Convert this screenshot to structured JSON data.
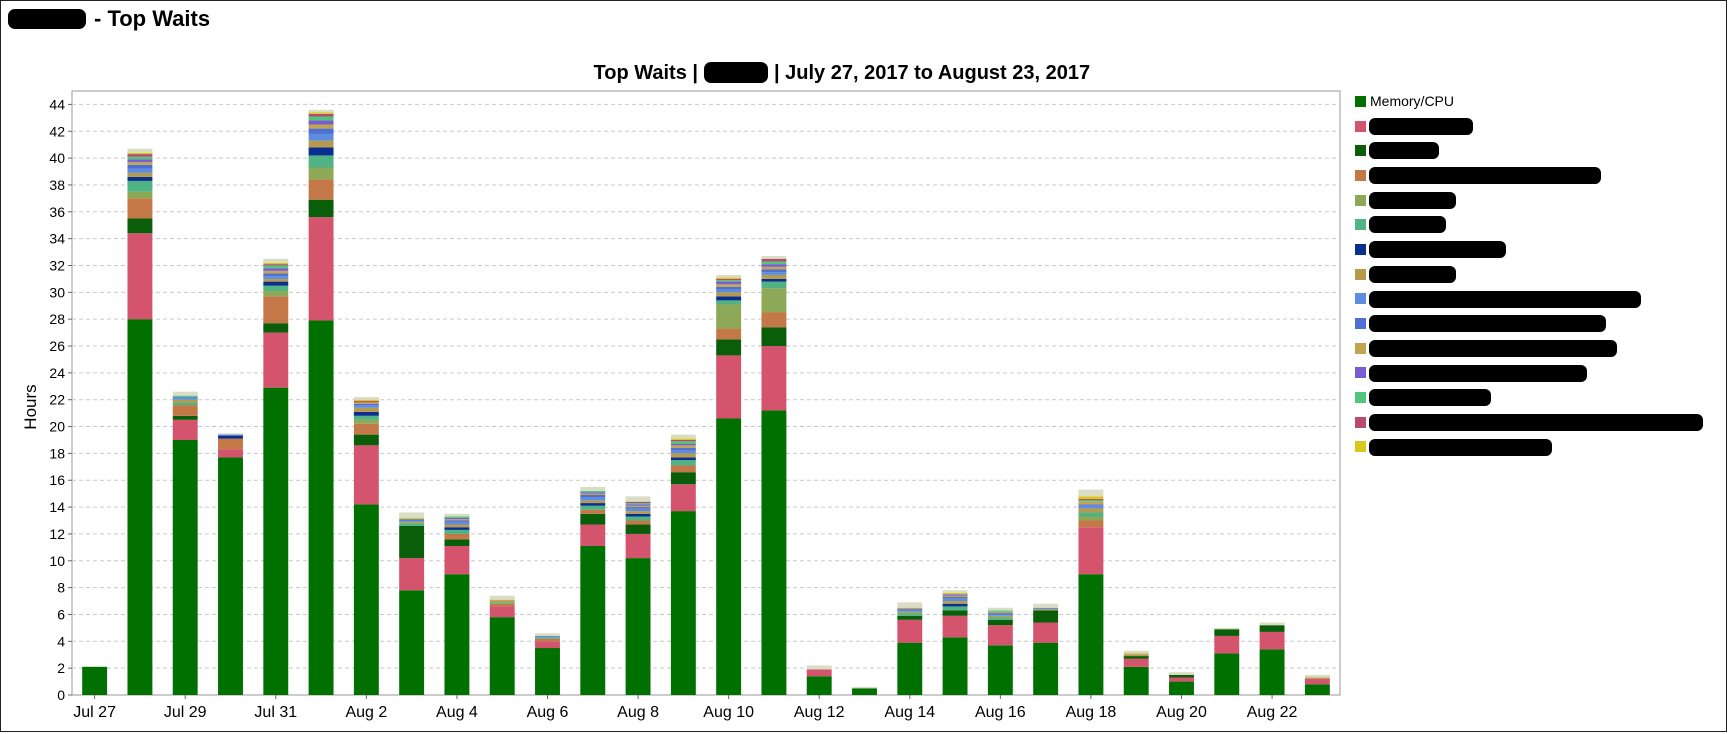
{
  "page": {
    "title": "- Top Waits"
  },
  "colors": {
    "background": "#ffffff",
    "plot_border": "#999999",
    "grid": "#c9c9c9",
    "redaction": "#000000"
  },
  "chart_data": {
    "type": "bar",
    "stacked": true,
    "title": "Top Waits |",
    "title_suffix": "| July 27, 2017 to August 23, 2017",
    "xlabel": "",
    "ylabel": "Hours",
    "ylim": [
      0,
      45
    ],
    "yticks": [
      0,
      2,
      4,
      6,
      8,
      10,
      12,
      14,
      16,
      18,
      20,
      22,
      24,
      26,
      28,
      30,
      32,
      34,
      36,
      38,
      40,
      42,
      44
    ],
    "grid": true,
    "legend_position": "right",
    "categories": [
      "Jul 27",
      "Jul 28",
      "Jul 29",
      "Jul 30",
      "Jul 31",
      "Aug 1",
      "Aug 2",
      "Aug 3",
      "Aug 4",
      "Aug 5",
      "Aug 6",
      "Aug 7",
      "Aug 8",
      "Aug 9",
      "Aug 10",
      "Aug 11",
      "Aug 12",
      "Aug 13",
      "Aug 14",
      "Aug 15",
      "Aug 16",
      "Aug 17",
      "Aug 18",
      "Aug 19",
      "Aug 20",
      "Aug 21",
      "Aug 22",
      "Aug 23"
    ],
    "xtick_labels": [
      "Jul 27",
      "",
      "Jul 29",
      "",
      "Jul 31",
      "",
      "Aug 2",
      "",
      "Aug 4",
      "",
      "Aug 6",
      "",
      "Aug 8",
      "",
      "Aug 10",
      "",
      "Aug 12",
      "",
      "Aug 14",
      "",
      "Aug 16",
      "",
      "Aug 18",
      "",
      "Aug 20",
      "",
      "Aug 22",
      ""
    ],
    "series": [
      {
        "name": "Memory/CPU",
        "color": "#007000",
        "values": [
          2.1,
          28.0,
          19.0,
          17.7,
          22.9,
          27.9,
          14.2,
          7.8,
          9.0,
          5.8,
          3.5,
          11.1,
          10.2,
          13.7,
          20.6,
          21.2,
          1.4,
          0.5,
          3.9,
          4.3,
          3.7,
          3.9,
          9.0,
          2.1,
          1.0,
          3.1,
          3.4,
          0.8
        ]
      },
      {
        "color": "#d4546e",
        "values": [
          0,
          6.4,
          1.5,
          0.6,
          4.1,
          7.7,
          4.4,
          2.4,
          2.1,
          0.8,
          0.5,
          1.6,
          1.8,
          2.0,
          4.7,
          4.8,
          0.5,
          0,
          1.7,
          1.6,
          1.5,
          1.5,
          3.5,
          0.6,
          0.3,
          1.3,
          1.3,
          0.4
        ]
      },
      {
        "color": "#0a5e0a",
        "values": [
          0,
          1.1,
          0.3,
          0,
          0.7,
          1.3,
          0.8,
          2.4,
          0.5,
          0,
          0,
          0.8,
          0.7,
          0.9,
          1.2,
          1.4,
          0,
          0,
          0.3,
          0.4,
          0.4,
          0.9,
          0,
          0.2,
          0.2,
          0.5,
          0.5,
          0
        ]
      },
      {
        "color": "#c47848",
        "values": [
          0,
          1.5,
          0.8,
          0.8,
          2.0,
          1.5,
          0.8,
          0,
          0.4,
          0.2,
          0.2,
          0.3,
          0.3,
          0.5,
          0.8,
          1.1,
          0,
          0,
          0,
          0,
          0,
          0,
          0.5,
          0,
          0,
          0,
          0,
          0
        ]
      },
      {
        "color": "#8da857",
        "values": [
          0,
          0.5,
          0,
          0,
          0.4,
          0.9,
          0.3,
          0,
          0,
          0,
          0,
          0,
          0,
          0,
          1.8,
          1.8,
          0,
          0,
          0,
          0,
          0,
          0,
          0.3,
          0,
          0,
          0,
          0,
          0
        ]
      },
      {
        "color": "#4fb384",
        "values": [
          0,
          0.8,
          0.2,
          0,
          0.4,
          0.9,
          0.3,
          0.2,
          0.3,
          0.1,
          0.1,
          0.3,
          0.3,
          0.4,
          0.3,
          0.5,
          0,
          0,
          0.2,
          0.3,
          0.2,
          0,
          0.3,
          0,
          0,
          0,
          0,
          0
        ]
      },
      {
        "color": "#0b2f8f",
        "values": [
          0,
          0.3,
          0,
          0.2,
          0.3,
          0.6,
          0.3,
          0,
          0.2,
          0,
          0,
          0.2,
          0.2,
          0.2,
          0.3,
          0.2,
          0,
          0,
          0,
          0.2,
          0,
          0,
          0,
          0,
          0,
          0,
          0,
          0
        ]
      },
      {
        "color": "#b89a4a",
        "values": [
          0,
          0.3,
          0.2,
          0,
          0.2,
          0.5,
          0.3,
          0.1,
          0.2,
          0.1,
          0,
          0.2,
          0.2,
          0.3,
          0.3,
          0.3,
          0,
          0,
          0.1,
          0.2,
          0.1,
          0.1,
          0.3,
          0.1,
          0,
          0,
          0,
          0.1
        ]
      },
      {
        "color": "#5b8de0",
        "values": [
          0,
          0.3,
          0.2,
          0,
          0.2,
          0.5,
          0.2,
          0.1,
          0.2,
          0,
          0.1,
          0.2,
          0.2,
          0.2,
          0.2,
          0.2,
          0,
          0,
          0.1,
          0.2,
          0.1,
          0.1,
          0.2,
          0,
          0,
          0,
          0,
          0
        ]
      },
      {
        "color": "#4f6fd4",
        "values": [
          0,
          0.3,
          0,
          0.1,
          0.2,
          0.4,
          0.1,
          0.1,
          0.1,
          0,
          0,
          0.2,
          0.1,
          0.2,
          0.2,
          0.2,
          0,
          0,
          0.1,
          0.1,
          0.1,
          0,
          0.1,
          0,
          0,
          0,
          0,
          0
        ]
      },
      {
        "color": "#c2a64f",
        "values": [
          0,
          0.2,
          0,
          0,
          0.2,
          0.3,
          0.1,
          0,
          0.1,
          0.1,
          0,
          0.1,
          0.1,
          0.2,
          0.2,
          0.2,
          0,
          0,
          0.1,
          0.1,
          0.1,
          0,
          0.2,
          0.1,
          0,
          0,
          0,
          0
        ]
      },
      {
        "color": "#7a5bd1",
        "values": [
          0,
          0.2,
          0,
          0,
          0.2,
          0.3,
          0,
          0,
          0.1,
          0,
          0,
          0.1,
          0.1,
          0.1,
          0.2,
          0.2,
          0,
          0,
          0,
          0.1,
          0,
          0,
          0,
          0,
          0,
          0,
          0,
          0
        ]
      },
      {
        "color": "#4ec77d",
        "values": [
          0,
          0.2,
          0.1,
          0,
          0.2,
          0.3,
          0,
          0,
          0.1,
          0,
          0,
          0.1,
          0.1,
          0.2,
          0.1,
          0.2,
          0,
          0,
          0,
          0,
          0.1,
          0,
          0.1,
          0,
          0,
          0,
          0,
          0
        ]
      },
      {
        "color": "#b84a6e",
        "values": [
          0,
          0.2,
          0,
          0,
          0.1,
          0.2,
          0.1,
          0,
          0,
          0,
          0,
          0,
          0.1,
          0.1,
          0.1,
          0.2,
          0,
          0,
          0,
          0,
          0,
          0,
          0.1,
          0,
          0,
          0,
          0,
          0
        ]
      },
      {
        "color": "#d6c91a",
        "values": [
          0,
          0.1,
          0,
          0,
          0.1,
          0.1,
          0.1,
          0.1,
          0,
          0,
          0,
          0,
          0,
          0.1,
          0.1,
          0,
          0,
          0,
          0,
          0.1,
          0,
          0,
          0.2,
          0,
          0,
          0,
          0,
          0
        ]
      },
      {
        "color": "#dbdcc4",
        "values": [
          0,
          0.3,
          0.3,
          0.1,
          0.3,
          0.2,
          0.2,
          0.4,
          0.2,
          0.3,
          0.2,
          0.3,
          0.4,
          0.3,
          0.2,
          0.2,
          0.3,
          0.1,
          0.4,
          0.2,
          0.2,
          0.3,
          0.5,
          0.2,
          0.2,
          0.1,
          0.2,
          0.2
        ]
      }
    ]
  }
}
